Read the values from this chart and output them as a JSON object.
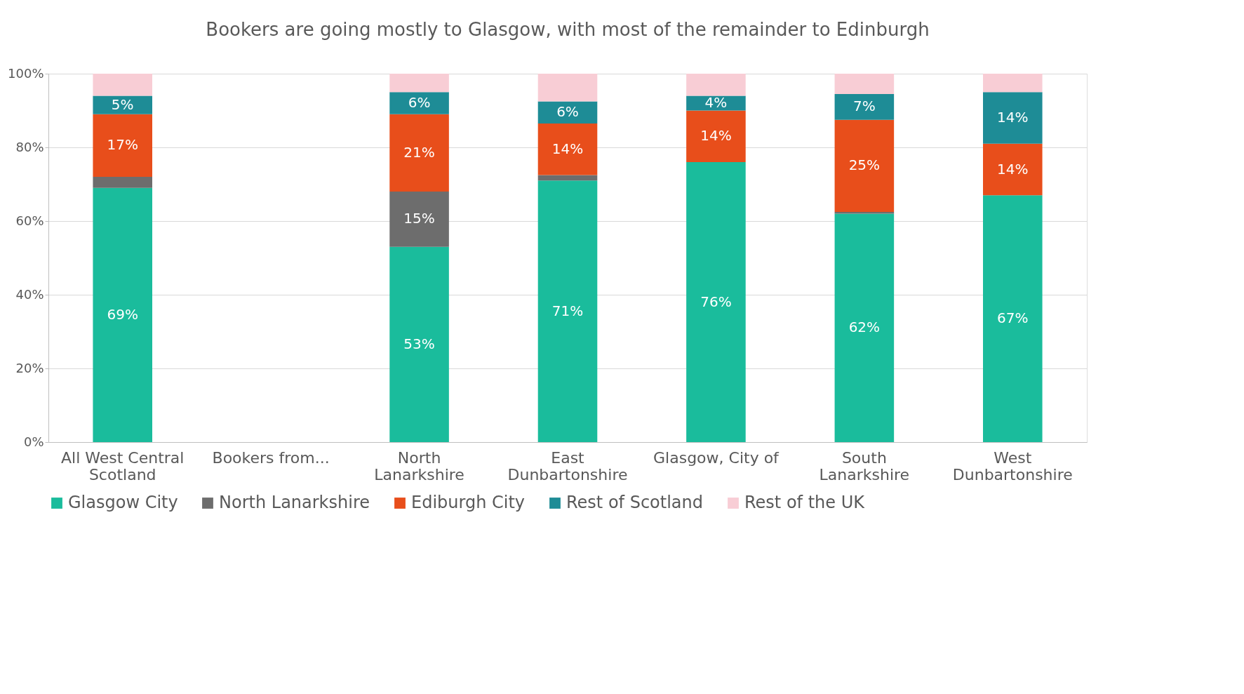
{
  "chart_data": {
    "type": "bar",
    "stacked": true,
    "title": "Bookers are going mostly to Glasgow, with most of the remainder to Edinburgh",
    "categories": [
      "All West Central Scotland",
      "Bookers from...",
      "North Lanarkshire",
      "East Dunbartonshire",
      "Glasgow, City of",
      "South Lanarkshire",
      "West Dunbartonshire"
    ],
    "series": [
      {
        "name": "Glasgow City",
        "color": "#1abc9c",
        "values": [
          69,
          null,
          53,
          71,
          76,
          62,
          67
        ],
        "value_labels": [
          "69%",
          null,
          "53%",
          "71%",
          "76%",
          "62%",
          "67%"
        ]
      },
      {
        "name": "North Lanarkshire",
        "color": "#6d6d6d",
        "values": [
          3,
          null,
          15,
          1.5,
          0,
          0.5,
          0
        ],
        "value_labels": [
          null,
          null,
          "15%",
          null,
          null,
          null,
          null
        ]
      },
      {
        "name": "Ediburgh City",
        "color": "#e84e1b",
        "values": [
          17,
          null,
          21,
          14,
          14,
          25,
          14
        ],
        "value_labels": [
          "17%",
          null,
          "21%",
          "14%",
          "14%",
          "25%",
          "14%"
        ]
      },
      {
        "name": "Rest of Scotland",
        "color": "#1e8c96",
        "values": [
          5,
          null,
          6,
          6,
          4,
          7,
          14
        ],
        "value_labels": [
          "5%",
          null,
          "6%",
          "6%",
          "4%",
          "7%",
          "14%"
        ]
      },
      {
        "name": "Rest of the UK",
        "color": "#f8cdd5",
        "values": [
          6,
          null,
          5,
          7.5,
          6,
          5.5,
          5
        ],
        "value_labels": [
          null,
          null,
          null,
          null,
          null,
          null,
          null
        ]
      }
    ],
    "ylim": [
      0,
      100
    ],
    "yticks": [
      {
        "value": 0,
        "label": "0%"
      },
      {
        "value": 20,
        "label": "20%"
      },
      {
        "value": 40,
        "label": "40%"
      },
      {
        "value": 60,
        "label": "60%"
      },
      {
        "value": 80,
        "label": "80%"
      },
      {
        "value": 100,
        "label": "100%"
      }
    ],
    "grid": "y",
    "legend": "bottom"
  }
}
